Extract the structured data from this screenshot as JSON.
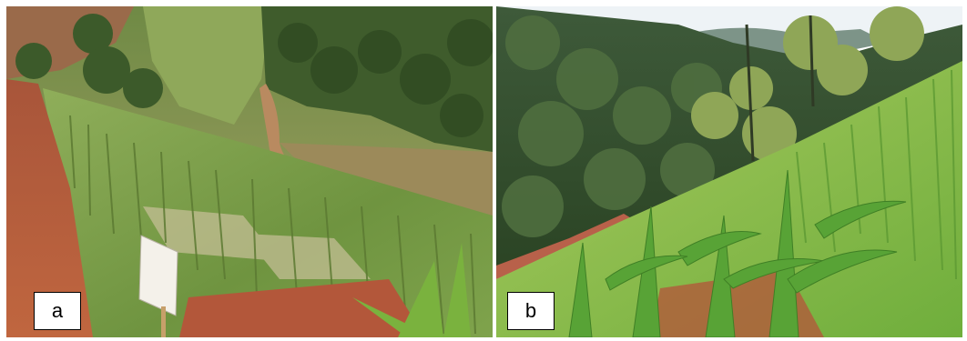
{
  "panels": [
    {
      "label": "a",
      "scene": "photo"
    },
    {
      "label": "b",
      "scene": "photo"
    }
  ],
  "colors": {
    "soil": "#b35a35",
    "grass": "#7ea04a",
    "dark_forest": "#2d4a22",
    "sky": "#eef3f6",
    "maize": "#5fa838"
  }
}
